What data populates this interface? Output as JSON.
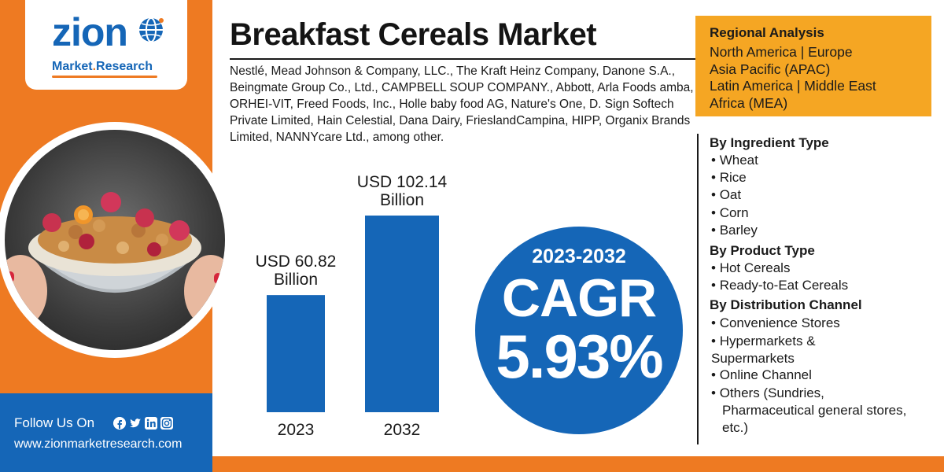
{
  "logo": {
    "word": "zion",
    "sub_prefix": "Market",
    "sub_suffix": "Research"
  },
  "title": "Breakfast Cereals Market",
  "companies": "Nestlé, Mead Johnson & Company, LLC., The Kraft Heinz Company, Danone S.A., Beingmate Group Co., Ltd., CAMPBELL SOUP COMPANY., Abbott, Arla Foods amba, ORHEI-VIT, Freed Foods, Inc., Holle baby food AG, Nature's One, D. Sign Softech Private Limited, Hain Celestial, Dana Dairy, FrieslandCampina, HIPP, Organix Brands Limited, NANNYcare Ltd., among other.",
  "footer": {
    "follow": "Follow Us On",
    "social_icons": [
      "facebook-icon",
      "twitter-icon",
      "linkedin-icon",
      "instagram-icon"
    ],
    "website": "www.zionmarketresearch.com"
  },
  "chart_data": {
    "type": "bar",
    "categories": [
      "2023",
      "2032"
    ],
    "values": [
      60.82,
      102.14
    ],
    "value_labels": [
      [
        "USD 60.82",
        "Billion"
      ],
      [
        "USD 102.14",
        "Billion"
      ]
    ],
    "title": "",
    "xlabel": "",
    "ylabel": "",
    "ylim": [
      0,
      102.14
    ],
    "grid": false,
    "bar_color": "#1566b7"
  },
  "cagr": {
    "period": "2023-2032",
    "label": "CAGR",
    "value": "5.93%"
  },
  "regional": {
    "title": "Regional Analysis",
    "lines": [
      "North America | Europe",
      "Asia Pacific (APAC)",
      "Latin America | Middle East",
      "Africa (MEA)"
    ]
  },
  "segments": [
    {
      "title": "By Ingredient Type",
      "items": [
        "Wheat",
        "Rice",
        "Oat",
        "Corn",
        "Barley"
      ]
    },
    {
      "title": "By Product Type",
      "items": [
        "Hot Cereals",
        "Ready-to-Eat Cereals"
      ]
    },
    {
      "title": "By Distribution Channel",
      "items": [
        "Convenience Stores",
        "Hypermarkets & Supermarkets",
        "Online Channel",
        "Others (Sundries, Pharmaceutical general stores, etc.)"
      ]
    }
  ],
  "colors": {
    "brand_blue": "#1566b7",
    "brand_orange": "#ee7a22",
    "regional_yellow": "#f5a623"
  }
}
